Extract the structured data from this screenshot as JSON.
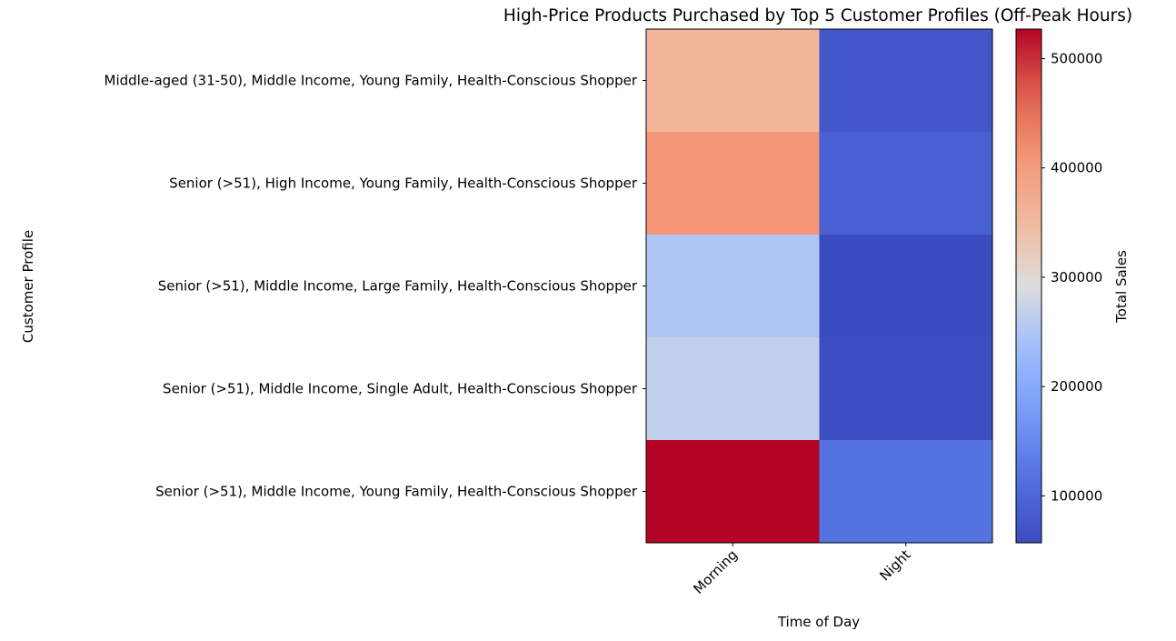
{
  "chart_data": {
    "type": "heatmap",
    "title": "High-Price Products Purchased by Top 5 Customer Profiles (Off-Peak Hours)",
    "xlabel": "Time of Day",
    "ylabel": "Customer Profile",
    "x_categories": [
      "Morning",
      "Night"
    ],
    "y_categories": [
      "Middle-aged (31-50), Middle Income, Young Family, Health-Conscious Shopper",
      "Senior (>51), High Income, Young Family, Health-Conscious Shopper",
      "Senior (>51), Middle Income, Large Family, Health-Conscious Shopper",
      "Senior (>51), Middle Income, Single Adult, Health-Conscious Shopper",
      "Senior (>51), Middle Income, Young Family, Health-Conscious Shopper"
    ],
    "values": [
      [
        355000,
        75000
      ],
      [
        410000,
        90000
      ],
      [
        250000,
        57000
      ],
      [
        268000,
        58000
      ],
      [
        527000,
        118000
      ]
    ],
    "colormap": "coolwarm",
    "colorbar": {
      "label": "Total Sales",
      "min": 57000,
      "max": 527000,
      "ticks": [
        100000,
        200000,
        300000,
        400000,
        500000
      ],
      "tick_labels": [
        "100000",
        "200000",
        "300000",
        "400000",
        "500000"
      ]
    },
    "grid": false,
    "legend": "none"
  }
}
